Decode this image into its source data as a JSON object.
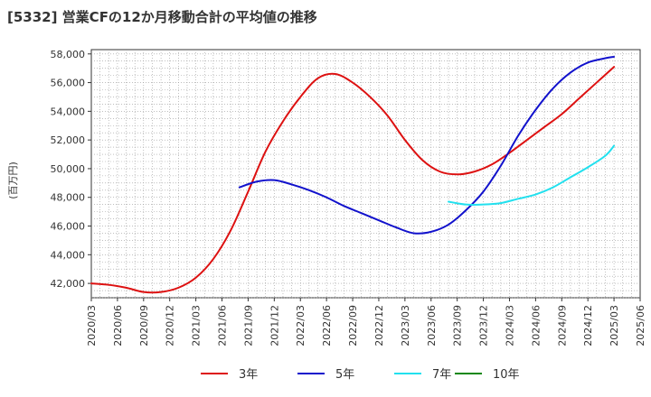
{
  "chart_data": {
    "type": "line",
    "title": "[5332]  営業CFの12か月移動合計の平均値の推移",
    "ylabel": "(百万円)",
    "xlabel": "",
    "ylim": [
      41000,
      58300
    ],
    "yticks": [
      42000,
      44000,
      46000,
      48000,
      50000,
      52000,
      54000,
      56000,
      58000
    ],
    "ytick_labels": [
      "42,000",
      "44,000",
      "46,000",
      "48,000",
      "50,000",
      "52,000",
      "54,000",
      "56,000",
      "58,000"
    ],
    "xticks": [
      "2020/03",
      "2020/06",
      "2020/09",
      "2020/12",
      "2021/03",
      "2021/06",
      "2021/09",
      "2021/12",
      "2022/03",
      "2022/06",
      "2022/09",
      "2022/12",
      "2023/03",
      "2023/06",
      "2023/09",
      "2023/12",
      "2024/03",
      "2024/06",
      "2024/09",
      "2024/12",
      "2025/03",
      "2025/06"
    ],
    "grid": true,
    "legend_position": "bottom",
    "series": [
      {
        "name": "3年",
        "color": "#dd1111",
        "x": [
          "2020/03",
          "2020/05",
          "2020/07",
          "2020/09",
          "2020/11",
          "2021/01",
          "2021/03",
          "2021/05",
          "2021/07",
          "2021/09",
          "2021/11",
          "2022/01",
          "2022/03",
          "2022/05",
          "2022/07",
          "2022/09",
          "2022/11",
          "2023/01",
          "2023/03",
          "2023/05",
          "2023/07",
          "2023/09",
          "2023/11",
          "2024/01",
          "2024/03",
          "2024/05",
          "2024/07",
          "2024/09",
          "2024/11",
          "2025/01",
          "2025/03"
        ],
        "values": [
          42000,
          41900,
          41700,
          41400,
          41400,
          41700,
          42400,
          43700,
          45700,
          48400,
          51200,
          53300,
          55000,
          56300,
          56600,
          56000,
          55000,
          53700,
          52000,
          50600,
          49800,
          49600,
          49800,
          50300,
          51100,
          52000,
          52900,
          53800,
          54900,
          56000,
          57100
        ]
      },
      {
        "name": "5年",
        "color": "#1111cc",
        "x": [
          "2021/08",
          "2021/10",
          "2021/12",
          "2022/02",
          "2022/04",
          "2022/06",
          "2022/08",
          "2022/10",
          "2022/12",
          "2023/02",
          "2023/04",
          "2023/06",
          "2023/08",
          "2023/10",
          "2023/12",
          "2024/02",
          "2024/04",
          "2024/06",
          "2024/08",
          "2024/10",
          "2024/12",
          "2025/02",
          "2025/03"
        ],
        "values": [
          48700,
          49100,
          49200,
          48900,
          48500,
          48000,
          47400,
          46900,
          46400,
          45900,
          45500,
          45600,
          46100,
          47100,
          48400,
          50200,
          52300,
          54100,
          55600,
          56700,
          57400,
          57700,
          57800
        ]
      },
      {
        "name": "7年",
        "color": "#22e0ee",
        "x": [
          "2023/08",
          "2023/10",
          "2023/12",
          "2024/02",
          "2024/04",
          "2024/06",
          "2024/08",
          "2024/10",
          "2024/12",
          "2025/02",
          "2025/03"
        ],
        "values": [
          47700,
          47500,
          47500,
          47600,
          47900,
          48200,
          48700,
          49400,
          50100,
          50900,
          51600
        ]
      },
      {
        "name": "10年",
        "color": "#118811",
        "x": [],
        "values": []
      }
    ]
  }
}
